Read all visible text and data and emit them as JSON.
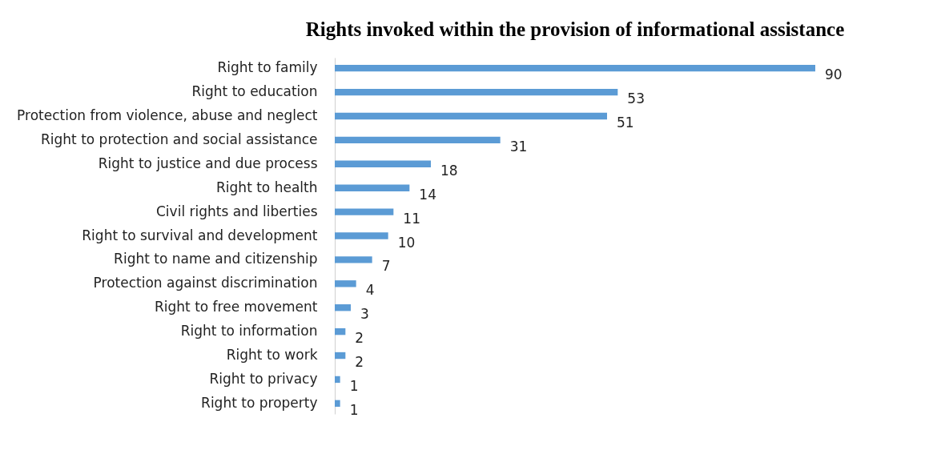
{
  "chart_data": {
    "type": "bar",
    "orientation": "horizontal",
    "title": "Rights invoked within the provision of informational assistance",
    "categories": [
      "Right to family",
      "Right to education",
      "Protection from violence, abuse and neglect",
      "Right to protection and social assistance",
      "Right to justice and due process",
      "Right to health",
      "Civil rights and liberties",
      "Right to survival and development",
      "Right to name and citizenship",
      "Protection against discrimination",
      "Right to free movement",
      "Right to information",
      "Right to work",
      "Right to privacy",
      "Right to property"
    ],
    "values": [
      90,
      53,
      51,
      31,
      18,
      14,
      11,
      10,
      7,
      4,
      3,
      2,
      2,
      1,
      1
    ],
    "color": "#5b9bd5",
    "data_labels": true
  }
}
